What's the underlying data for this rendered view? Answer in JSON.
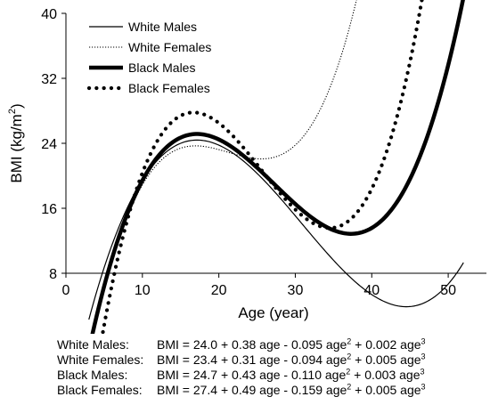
{
  "chart_data": {
    "type": "line",
    "title": "",
    "xlabel": "Age (year)",
    "ylabel_main": "BMI (kg/m",
    "ylabel_sup": "2",
    "ylabel_close": ")",
    "xlim": [
      0,
      55
    ],
    "ylim": [
      8,
      40
    ],
    "xticks": [
      0,
      10,
      20,
      30,
      40,
      50
    ],
    "yticks": [
      8,
      16,
      24,
      32,
      40
    ],
    "grid": false,
    "legend_position": "top-left",
    "x_range": [
      3,
      52
    ],
    "series": [
      {
        "name": "White Males",
        "style": "thin-solid",
        "coef": [
          24.0,
          0.38,
          -0.095,
          0.002
        ]
      },
      {
        "name": "White Females",
        "style": "thin-dotted",
        "coef": [
          23.4,
          0.31,
          -0.094,
          0.005
        ]
      },
      {
        "name": "Black Males",
        "style": "thick-solid",
        "coef": [
          24.7,
          0.43,
          -0.11,
          0.003
        ]
      },
      {
        "name": "Black Females",
        "style": "thick-dotted",
        "coef": [
          27.4,
          0.49,
          -0.159,
          0.005
        ]
      }
    ]
  },
  "equations": [
    {
      "label": "White Males:",
      "text": "BMI = 24.0 + 0.38 age - 0.095 age",
      "sq": "2",
      "mid": " + 0.002 age",
      "cube": "3"
    },
    {
      "label": "White Females:",
      "text": "BMI = 23.4 + 0.31 age - 0.094 age",
      "sq": "2",
      "mid": " + 0.005 age",
      "cube": "3"
    },
    {
      "label": "Black Males:",
      "text": "BMI = 24.7 + 0.43 age - 0.110 age",
      "sq": "2",
      "mid": " + 0.003 age",
      "cube": "3"
    },
    {
      "label": "Black Females:",
      "text": "BMI = 27.4 + 0.49 age - 0.159 age",
      "sq": "2",
      "mid": " + 0.005 age",
      "cube": "3"
    }
  ]
}
